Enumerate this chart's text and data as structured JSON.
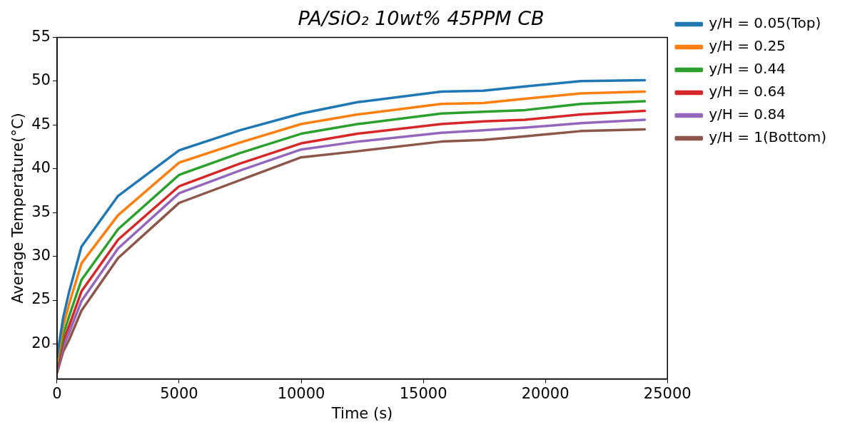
{
  "chart_data": {
    "type": "line",
    "title": "PA/SiO₂ 10wt% 45PPM CB",
    "xlabel": "Time (s)",
    "ylabel": "Average Temperature(°C)",
    "x": [
      0,
      250,
      500,
      1000,
      2500,
      5000,
      7500,
      10000,
      12310,
      15740,
      17455,
      19170,
      21460,
      24070
    ],
    "xlim": [
      0,
      25000
    ],
    "xticks": [
      0,
      5000,
      10000,
      15000,
      20000,
      25000
    ],
    "ylim": [
      16,
      55
    ],
    "yticks": [
      20,
      25,
      30,
      35,
      40,
      45,
      50,
      55
    ],
    "legend": "right",
    "marker": "none",
    "line_style": "solid",
    "series": [
      {
        "name": "y/H = 0.05(Top)",
        "color": "#1f77b4",
        "values": [
          18.5,
          23,
          26.0,
          31.1,
          36.9,
          42.1,
          44.4,
          46.3,
          47.6,
          48.8,
          48.9,
          49.4,
          50.0,
          50.1
        ]
      },
      {
        "name": "y/H = 0.25",
        "color": "#ff7f0e",
        "values": [
          18,
          22,
          24.6,
          29.2,
          34.7,
          40.7,
          43.0,
          45.1,
          46.2,
          47.4,
          47.5,
          48.0,
          48.6,
          48.8
        ]
      },
      {
        "name": "y/H = 0.44",
        "color": "#2ca02c",
        "values": [
          17.7,
          21,
          23.2,
          27.3,
          33.1,
          39.3,
          41.8,
          44.0,
          45.1,
          46.3,
          46.5,
          46.7,
          47.4,
          47.7
        ]
      },
      {
        "name": "y/H = 0.64",
        "color": "#d62728",
        "values": [
          17.3,
          20.3,
          22.1,
          26.0,
          31.9,
          38.0,
          40.6,
          42.9,
          44.0,
          45.1,
          45.4,
          45.6,
          46.2,
          46.6
        ]
      },
      {
        "name": "y/H = 0.84",
        "color": "#9467bd",
        "values": [
          17,
          19.7,
          21.3,
          24.9,
          30.9,
          37.2,
          39.8,
          42.2,
          43.1,
          44.1,
          44.4,
          44.7,
          45.2,
          45.6
        ]
      },
      {
        "name": "y/H = 1(Bottom)",
        "color": "#8c564b",
        "values": [
          16.7,
          19.1,
          20.5,
          23.8,
          29.8,
          36.1,
          38.7,
          41.3,
          42.0,
          43.1,
          43.3,
          43.7,
          44.3,
          44.5
        ]
      }
    ]
  }
}
